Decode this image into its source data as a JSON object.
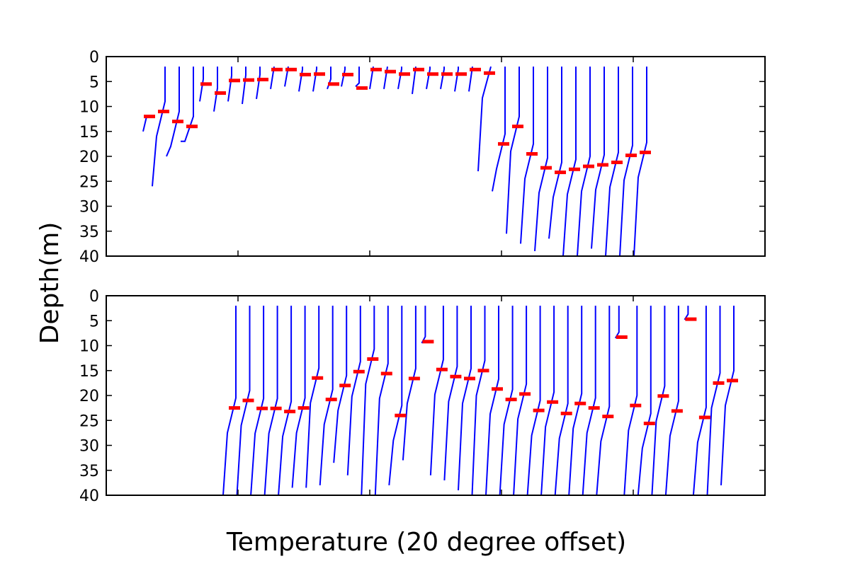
{
  "figure": {
    "ylabel": "Depth(m)",
    "xlabel": "Temperature (20 degree offset)"
  },
  "chart_data": [
    {
      "type": "line",
      "title": "",
      "ylabel": "Depth(m)",
      "xlabel": "",
      "ylim": [
        40,
        0
      ],
      "yticks": [
        0,
        5,
        10,
        15,
        20,
        25,
        30,
        35,
        40
      ],
      "ytick_labels": [
        "0",
        "5",
        "10",
        "15",
        "20",
        "25",
        "30",
        "35",
        "40"
      ],
      "line_color": "#0000ff",
      "marker_color": "#ff0000",
      "profiles": [
        {
          "top": 12,
          "bottom": 15,
          "markers": [
            12
          ]
        },
        {
          "top": 2,
          "bottom": 26,
          "markers": [
            11
          ]
        },
        {
          "top": 2,
          "bottom": 20,
          "markers": [
            13
          ]
        },
        {
          "top": 2,
          "bottom": 17,
          "markers": [
            14
          ]
        },
        {
          "top": 2,
          "bottom": 9,
          "markers": [
            5.5
          ]
        },
        {
          "top": 2,
          "bottom": 11,
          "markers": [
            7.3
          ]
        },
        {
          "top": 2,
          "bottom": 9,
          "markers": [
            4.8
          ]
        },
        {
          "top": 2,
          "bottom": 9.5,
          "markers": [
            4.7
          ]
        },
        {
          "top": 2,
          "bottom": 8.5,
          "markers": [
            4.6
          ]
        },
        {
          "top": 2,
          "bottom": 6.5,
          "markers": [
            2.6
          ]
        },
        {
          "top": 2,
          "bottom": 6,
          "markers": [
            2.6
          ]
        },
        {
          "top": 2,
          "bottom": 7,
          "markers": [
            3.6
          ]
        },
        {
          "top": 2,
          "bottom": 7,
          "markers": [
            3.5
          ]
        },
        {
          "top": 2,
          "bottom": 6.5,
          "markers": [
            5.5
          ]
        },
        {
          "top": 2,
          "bottom": 6,
          "markers": [
            3.6
          ]
        },
        {
          "top": 2,
          "bottom": 6,
          "markers": [
            6.3
          ]
        },
        {
          "top": 2,
          "bottom": 6.5,
          "markers": [
            2.6
          ]
        },
        {
          "top": 2,
          "bottom": 6.5,
          "markers": [
            3
          ]
        },
        {
          "top": 2,
          "bottom": 6.5,
          "markers": [
            3.5
          ]
        },
        {
          "top": 2,
          "bottom": 7.5,
          "markers": [
            2.6
          ]
        },
        {
          "top": 2,
          "bottom": 6.5,
          "markers": [
            3.5
          ]
        },
        {
          "top": 2,
          "bottom": 6.5,
          "markers": [
            3.5
          ]
        },
        {
          "top": 2,
          "bottom": 7,
          "markers": [
            3.5
          ]
        },
        {
          "top": 2,
          "bottom": 7,
          "markers": [
            2.6
          ]
        },
        {
          "top": 2,
          "bottom": 23,
          "markers": [
            3.3
          ]
        },
        {
          "top": 2,
          "bottom": 27,
          "markers": [
            17.5
          ]
        },
        {
          "top": 2,
          "bottom": 35.5,
          "markers": [
            14
          ]
        },
        {
          "top": 2,
          "bottom": 37.5,
          "markers": [
            19.5
          ]
        },
        {
          "top": 2,
          "bottom": 39,
          "markers": [
            22.3
          ]
        },
        {
          "top": 2,
          "bottom": 36.5,
          "markers": [
            23.2
          ]
        },
        {
          "top": 2,
          "bottom": 40,
          "markers": [
            22.6
          ]
        },
        {
          "top": 2,
          "bottom": 40,
          "markers": [
            22
          ]
        },
        {
          "top": 2,
          "bottom": 38.5,
          "markers": [
            21.7
          ]
        },
        {
          "top": 2,
          "bottom": 40,
          "markers": [
            21.2
          ]
        },
        {
          "top": 2,
          "bottom": 40,
          "markers": [
            19.8
          ]
        },
        {
          "top": 2,
          "bottom": 40,
          "markers": [
            19.2
          ]
        }
      ]
    },
    {
      "type": "line",
      "title": "",
      "ylabel": "Depth(m)",
      "xlabel": "Temperature (20 degree offset)",
      "ylim": [
        40,
        0
      ],
      "yticks": [
        0,
        5,
        10,
        15,
        20,
        25,
        30,
        35,
        40
      ],
      "ytick_labels": [
        "0",
        "5",
        "10",
        "15",
        "20",
        "25",
        "30",
        "35",
        "40"
      ],
      "line_color": "#0000ff",
      "marker_color": "#ff0000",
      "profiles": [
        {
          "top": 2,
          "bottom": 40,
          "markers": [
            22.5
          ]
        },
        {
          "top": 2,
          "bottom": 40,
          "markers": [
            21
          ]
        },
        {
          "top": 2,
          "bottom": 40,
          "markers": [
            22.6
          ]
        },
        {
          "top": 2,
          "bottom": 40,
          "markers": [
            22.6
          ]
        },
        {
          "top": 2,
          "bottom": 40,
          "markers": [
            23.2
          ]
        },
        {
          "top": 2,
          "bottom": 38.5,
          "markers": [
            22.5
          ]
        },
        {
          "top": 2,
          "bottom": 38.5,
          "markers": [
            16.5
          ]
        },
        {
          "top": 2,
          "bottom": 38,
          "markers": [
            20.8
          ]
        },
        {
          "top": 2,
          "bottom": 33.5,
          "markers": [
            18
          ]
        },
        {
          "top": 2,
          "bottom": 36,
          "markers": [
            15.2
          ]
        },
        {
          "top": 2,
          "bottom": 40,
          "markers": [
            12.7
          ]
        },
        {
          "top": 2,
          "bottom": 40,
          "markers": [
            15.6
          ]
        },
        {
          "top": 2,
          "bottom": 38,
          "markers": [
            24
          ]
        },
        {
          "top": 2,
          "bottom": 33,
          "markers": [
            16.6
          ]
        },
        {
          "top": 2,
          "bottom": 9.5,
          "markers": [
            9.2
          ]
        },
        {
          "top": 2,
          "bottom": 36,
          "markers": [
            14.8
          ]
        },
        {
          "top": 2,
          "bottom": 37,
          "markers": [
            16.2
          ]
        },
        {
          "top": 2,
          "bottom": 39,
          "markers": [
            16.6
          ]
        },
        {
          "top": 2,
          "bottom": 40,
          "markers": [
            15
          ]
        },
        {
          "top": 2,
          "bottom": 40,
          "markers": [
            18.7
          ]
        },
        {
          "top": 2,
          "bottom": 40,
          "markers": [
            20.8
          ]
        },
        {
          "top": 2,
          "bottom": 40,
          "markers": [
            19.7
          ]
        },
        {
          "top": 2,
          "bottom": 40,
          "markers": [
            23
          ]
        },
        {
          "top": 2,
          "bottom": 40,
          "markers": [
            21.3
          ]
        },
        {
          "top": 2,
          "bottom": 40,
          "markers": [
            23.6
          ]
        },
        {
          "top": 2,
          "bottom": 40,
          "markers": [
            21.6
          ]
        },
        {
          "top": 2,
          "bottom": 40,
          "markers": [
            22.5
          ]
        },
        {
          "top": 2,
          "bottom": 40,
          "markers": [
            24.2
          ]
        },
        {
          "top": 2,
          "bottom": 8.5,
          "markers": [
            8.3
          ]
        },
        {
          "top": 2,
          "bottom": 40,
          "markers": [
            22
          ]
        },
        {
          "top": 2,
          "bottom": 40,
          "markers": [
            25.6
          ]
        },
        {
          "top": 2,
          "bottom": 40,
          "markers": [
            20.1
          ]
        },
        {
          "top": 2,
          "bottom": 40,
          "markers": [
            23.1
          ]
        },
        {
          "top": 2,
          "bottom": 4.8,
          "markers": [
            4.7
          ]
        },
        {
          "top": 2,
          "bottom": 40,
          "markers": [
            24.4
          ]
        },
        {
          "top": 2,
          "bottom": 40,
          "markers": [
            17.5
          ]
        },
        {
          "top": 2,
          "bottom": 38,
          "markers": [
            17
          ]
        }
      ]
    }
  ]
}
